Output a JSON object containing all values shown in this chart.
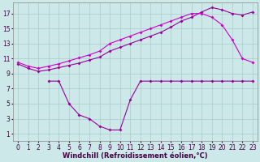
{
  "bg_color": "#cce8e8",
  "grid_color": "#aacccc",
  "line_color1": "#cc00cc",
  "line_color2": "#990099",
  "xlabel": "Windchill (Refroidissement éolien,°C)",
  "xlabel_fontsize": 6.0,
  "tick_fontsize": 5.5,
  "figsize": [
    3.2,
    2.0
  ],
  "dpi": 100,
  "xlim": [
    -0.5,
    23.5
  ],
  "ylim": [
    0,
    18.5
  ],
  "xticks": [
    0,
    1,
    2,
    3,
    4,
    5,
    6,
    7,
    8,
    9,
    10,
    11,
    12,
    13,
    14,
    15,
    16,
    17,
    18,
    19,
    20,
    21,
    22,
    23
  ],
  "yticks": [
    1,
    3,
    5,
    7,
    9,
    11,
    13,
    15,
    17
  ],
  "curve1_x": [
    0,
    1,
    2,
    3,
    4,
    5,
    6,
    7,
    8,
    9,
    10,
    11,
    12,
    13,
    14,
    15,
    16,
    17,
    18,
    19,
    20,
    21,
    22,
    23
  ],
  "curve1_y": [
    10.5,
    10.0,
    9.7,
    10.0,
    10.3,
    10.7,
    11.1,
    11.5,
    12.0,
    13.0,
    13.5,
    14.0,
    14.5,
    15.0,
    15.5,
    16.0,
    16.5,
    17.0,
    17.0,
    16.5,
    15.5,
    13.5,
    11.0,
    10.5
  ],
  "curve2_x": [
    0,
    1,
    2,
    3,
    4,
    5,
    6,
    7,
    8,
    9,
    10,
    11,
    12,
    13,
    14,
    15,
    16,
    17,
    18,
    19,
    20,
    21,
    22,
    23
  ],
  "curve2_y": [
    10.3,
    9.7,
    9.3,
    9.5,
    9.8,
    10.1,
    10.4,
    10.8,
    11.2,
    12.0,
    12.5,
    13.0,
    13.5,
    14.0,
    14.5,
    15.2,
    16.0,
    16.5,
    17.2,
    17.8,
    17.5,
    17.0,
    16.8,
    17.2
  ],
  "curve3_x": [
    3,
    4,
    5,
    6,
    7,
    8,
    9,
    10,
    11,
    12,
    13,
    14,
    15,
    16,
    17,
    18,
    19,
    20,
    21,
    22,
    23
  ],
  "curve3_y": [
    8.0,
    8.0,
    5.0,
    3.5,
    3.0,
    2.0,
    1.5,
    1.5,
    5.5,
    8.0,
    8.0,
    8.0,
    8.0,
    8.0,
    8.0,
    8.0,
    8.0,
    8.0,
    8.0,
    8.0,
    8.0
  ],
  "marker_size": 2.0,
  "line_width": 0.8
}
